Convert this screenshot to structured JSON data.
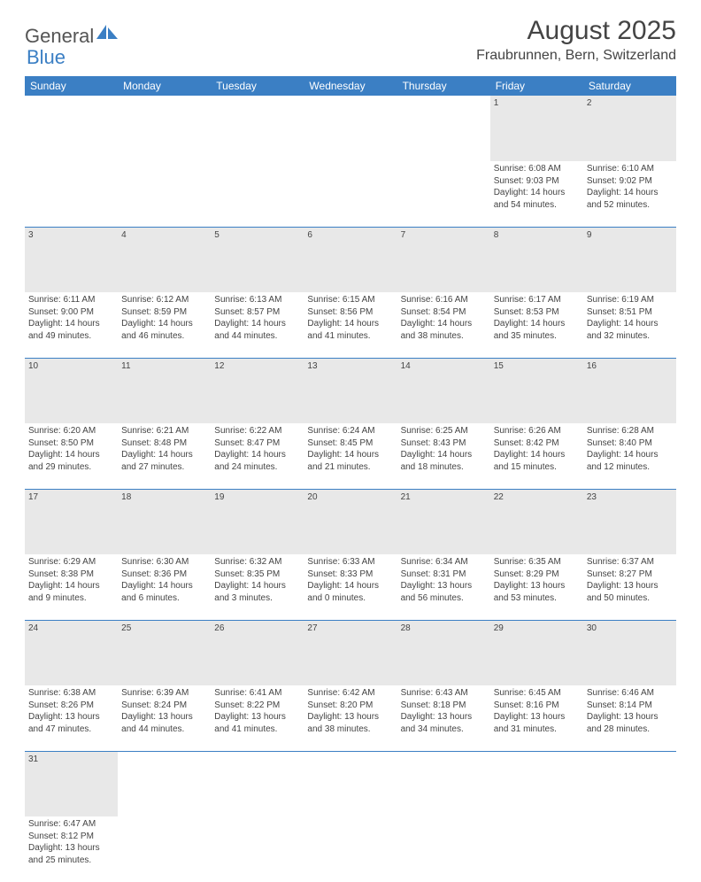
{
  "logo": {
    "text1": "General",
    "text2": "Blue"
  },
  "title": "August 2025",
  "subtitle": "Fraubrunnen, Bern, Switzerland",
  "headers": [
    "Sunday",
    "Monday",
    "Tuesday",
    "Wednesday",
    "Thursday",
    "Friday",
    "Saturday"
  ],
  "colors": {
    "header_bg": "#3b7fc4",
    "header_fg": "#ffffff",
    "daynum_bg": "#e8e8e8",
    "divider": "#3b7fc4",
    "text": "#444444",
    "page_bg": "#ffffff"
  },
  "weeks": [
    [
      null,
      null,
      null,
      null,
      null,
      {
        "n": "1",
        "sr": "6:08 AM",
        "ss": "9:03 PM",
        "dl": "14 hours and 54 minutes."
      },
      {
        "n": "2",
        "sr": "6:10 AM",
        "ss": "9:02 PM",
        "dl": "14 hours and 52 minutes."
      }
    ],
    [
      {
        "n": "3",
        "sr": "6:11 AM",
        "ss": "9:00 PM",
        "dl": "14 hours and 49 minutes."
      },
      {
        "n": "4",
        "sr": "6:12 AM",
        "ss": "8:59 PM",
        "dl": "14 hours and 46 minutes."
      },
      {
        "n": "5",
        "sr": "6:13 AM",
        "ss": "8:57 PM",
        "dl": "14 hours and 44 minutes."
      },
      {
        "n": "6",
        "sr": "6:15 AM",
        "ss": "8:56 PM",
        "dl": "14 hours and 41 minutes."
      },
      {
        "n": "7",
        "sr": "6:16 AM",
        "ss": "8:54 PM",
        "dl": "14 hours and 38 minutes."
      },
      {
        "n": "8",
        "sr": "6:17 AM",
        "ss": "8:53 PM",
        "dl": "14 hours and 35 minutes."
      },
      {
        "n": "9",
        "sr": "6:19 AM",
        "ss": "8:51 PM",
        "dl": "14 hours and 32 minutes."
      }
    ],
    [
      {
        "n": "10",
        "sr": "6:20 AM",
        "ss": "8:50 PM",
        "dl": "14 hours and 29 minutes."
      },
      {
        "n": "11",
        "sr": "6:21 AM",
        "ss": "8:48 PM",
        "dl": "14 hours and 27 minutes."
      },
      {
        "n": "12",
        "sr": "6:22 AM",
        "ss": "8:47 PM",
        "dl": "14 hours and 24 minutes."
      },
      {
        "n": "13",
        "sr": "6:24 AM",
        "ss": "8:45 PM",
        "dl": "14 hours and 21 minutes."
      },
      {
        "n": "14",
        "sr": "6:25 AM",
        "ss": "8:43 PM",
        "dl": "14 hours and 18 minutes."
      },
      {
        "n": "15",
        "sr": "6:26 AM",
        "ss": "8:42 PM",
        "dl": "14 hours and 15 minutes."
      },
      {
        "n": "16",
        "sr": "6:28 AM",
        "ss": "8:40 PM",
        "dl": "14 hours and 12 minutes."
      }
    ],
    [
      {
        "n": "17",
        "sr": "6:29 AM",
        "ss": "8:38 PM",
        "dl": "14 hours and 9 minutes."
      },
      {
        "n": "18",
        "sr": "6:30 AM",
        "ss": "8:36 PM",
        "dl": "14 hours and 6 minutes."
      },
      {
        "n": "19",
        "sr": "6:32 AM",
        "ss": "8:35 PM",
        "dl": "14 hours and 3 minutes."
      },
      {
        "n": "20",
        "sr": "6:33 AM",
        "ss": "8:33 PM",
        "dl": "14 hours and 0 minutes."
      },
      {
        "n": "21",
        "sr": "6:34 AM",
        "ss": "8:31 PM",
        "dl": "13 hours and 56 minutes."
      },
      {
        "n": "22",
        "sr": "6:35 AM",
        "ss": "8:29 PM",
        "dl": "13 hours and 53 minutes."
      },
      {
        "n": "23",
        "sr": "6:37 AM",
        "ss": "8:27 PM",
        "dl": "13 hours and 50 minutes."
      }
    ],
    [
      {
        "n": "24",
        "sr": "6:38 AM",
        "ss": "8:26 PM",
        "dl": "13 hours and 47 minutes."
      },
      {
        "n": "25",
        "sr": "6:39 AM",
        "ss": "8:24 PM",
        "dl": "13 hours and 44 minutes."
      },
      {
        "n": "26",
        "sr": "6:41 AM",
        "ss": "8:22 PM",
        "dl": "13 hours and 41 minutes."
      },
      {
        "n": "27",
        "sr": "6:42 AM",
        "ss": "8:20 PM",
        "dl": "13 hours and 38 minutes."
      },
      {
        "n": "28",
        "sr": "6:43 AM",
        "ss": "8:18 PM",
        "dl": "13 hours and 34 minutes."
      },
      {
        "n": "29",
        "sr": "6:45 AM",
        "ss": "8:16 PM",
        "dl": "13 hours and 31 minutes."
      },
      {
        "n": "30",
        "sr": "6:46 AM",
        "ss": "8:14 PM",
        "dl": "13 hours and 28 minutes."
      }
    ],
    [
      {
        "n": "31",
        "sr": "6:47 AM",
        "ss": "8:12 PM",
        "dl": "13 hours and 25 minutes."
      },
      null,
      null,
      null,
      null,
      null,
      null
    ]
  ],
  "labels": {
    "sunrise": "Sunrise:",
    "sunset": "Sunset:",
    "daylight": "Daylight:"
  }
}
